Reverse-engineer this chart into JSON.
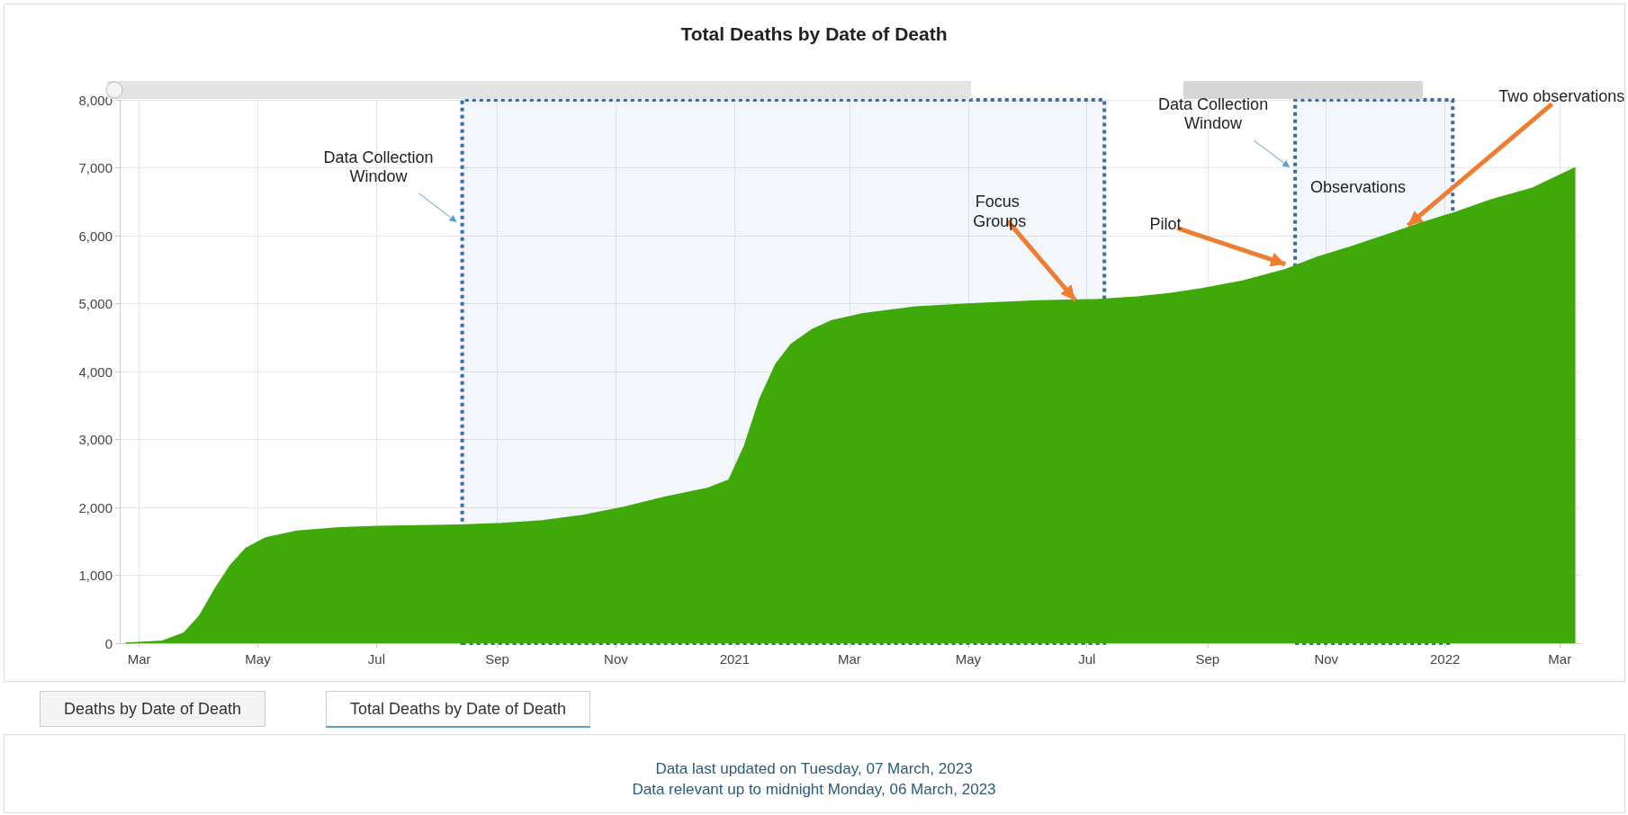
{
  "chart_data": {
    "type": "area",
    "title": "Total Deaths by Date of Death",
    "color": "#3fa90a",
    "marker": "none",
    "grid": true,
    "x": [
      "2020-02-23",
      "2020-03-13",
      "2020-03-24",
      "2020-04-01",
      "2020-04-09",
      "2020-04-17",
      "2020-04-25",
      "2020-05-05",
      "2020-05-21",
      "2020-06-12",
      "2020-07-01",
      "2020-08-13",
      "2020-09-03",
      "2020-09-24",
      "2020-10-15",
      "2020-11-05",
      "2020-11-26",
      "2020-12-18",
      "2020-12-29",
      "2021-01-06",
      "2021-01-14",
      "2021-01-22",
      "2021-01-30",
      "2021-02-10",
      "2021-02-20",
      "2021-03-08",
      "2021-04-04",
      "2021-05-05",
      "2021-06-06",
      "2021-07-07",
      "2021-07-28",
      "2021-08-13",
      "2021-08-29",
      "2021-09-19",
      "2021-10-11",
      "2021-10-27",
      "2021-11-12",
      "2021-12-03",
      "2021-12-19",
      "2022-01-04",
      "2022-01-25",
      "2022-02-15",
      "2022-03-09"
    ],
    "values": [
      0,
      30,
      150,
      400,
      800,
      1150,
      1400,
      1550,
      1650,
      1700,
      1720,
      1740,
      1760,
      1800,
      1880,
      2000,
      2150,
      2280,
      2400,
      2900,
      3600,
      4100,
      4400,
      4620,
      4750,
      4850,
      4950,
      5000,
      5040,
      5060,
      5100,
      5150,
      5220,
      5330,
      5500,
      5680,
      5820,
      6020,
      6180,
      6320,
      6530,
      6700,
      7000
    ],
    "xlim": [
      "2020-02-20",
      "2022-03-12"
    ],
    "xticks": [
      {
        "value": "2020-03-01",
        "label": "Mar"
      },
      {
        "value": "2020-05-01",
        "label": "May"
      },
      {
        "value": "2020-07-01",
        "label": "Jul"
      },
      {
        "value": "2020-09-01",
        "label": "Sep"
      },
      {
        "value": "2020-11-01",
        "label": "Nov"
      },
      {
        "value": "2021-01-01",
        "label": "2021"
      },
      {
        "value": "2021-03-01",
        "label": "Mar"
      },
      {
        "value": "2021-05-01",
        "label": "May"
      },
      {
        "value": "2021-07-01",
        "label": "Jul"
      },
      {
        "value": "2021-09-01",
        "label": "Sep"
      },
      {
        "value": "2021-11-01",
        "label": "Nov"
      },
      {
        "value": "2022-01-01",
        "label": "2022"
      },
      {
        "value": "2022-03-01",
        "label": "Mar"
      }
    ],
    "ylim": [
      0,
      8000
    ],
    "yticks": [
      0,
      {
        "value": 1000,
        "label": "1,000"
      },
      {
        "value": 2000,
        "label": "2,000"
      },
      {
        "value": 3000,
        "label": "3,000"
      },
      {
        "value": 4000,
        "label": "4,000"
      },
      {
        "value": 5000,
        "label": "5,000"
      },
      {
        "value": 6000,
        "label": "6,000"
      },
      {
        "value": 7000,
        "label": "7,000"
      },
      {
        "value": 8000,
        "label": "8,000"
      }
    ],
    "bands": [
      {
        "axis": "x",
        "from": "2020-08-14",
        "to": "2021-07-10",
        "label": "Data Collection Window",
        "color": "#3a6ea5"
      },
      {
        "axis": "x",
        "from": "2021-10-16",
        "to": "2022-01-05",
        "label": "Data Collection Window",
        "color": "#3a6ea5"
      }
    ],
    "annotations": [
      {
        "text": "Focus Groups",
        "x": "2021-06-25",
        "y": 5050
      },
      {
        "text": "Pilot",
        "x": "2021-10-11",
        "y": 5580
      },
      {
        "text": "Two observations",
        "x": "2021-12-13",
        "y": 6150
      },
      "Observations",
      "Deaths by Date of Death",
      "Total Deaths by Date of Death",
      "Data last updated on Tuesday, 07 March, 2023",
      "Data relevant up to midnight Monday, 06 March, 2023"
    ]
  }
}
